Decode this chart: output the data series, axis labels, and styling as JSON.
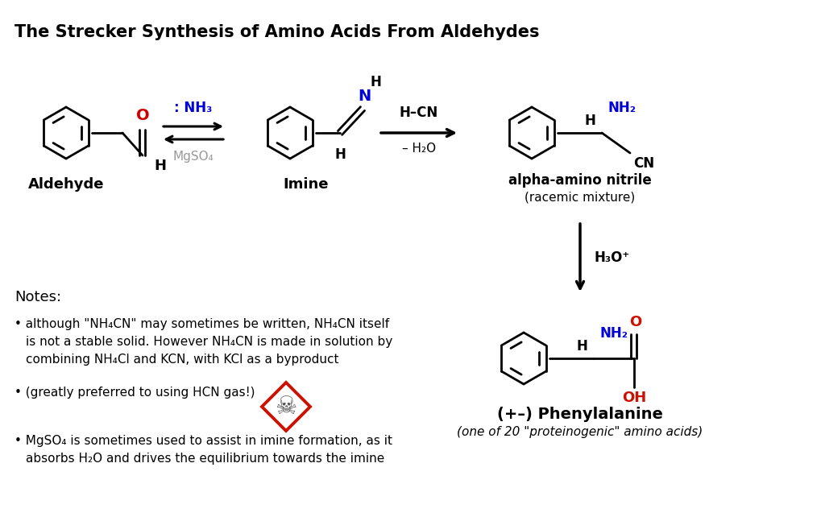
{
  "title": "The Strecker Synthesis of Amino Acids From Aldehydes",
  "bg_color": "#ffffff",
  "black": "#000000",
  "blue": "#0000dd",
  "red": "#cc0000",
  "gray": "#999999",
  "orange_red": "#cc1100",
  "label_aldehyde": "Aldehyde",
  "label_imine": "Imine",
  "label_aminonitrile": "alpha-amino nitrile",
  "label_racemic": "(racemic mixture)",
  "label_phenylalanine": "(+–) Phenylalanine",
  "label_proteinogenic": "(one of 20 \"proteinogenic\" amino acids)"
}
